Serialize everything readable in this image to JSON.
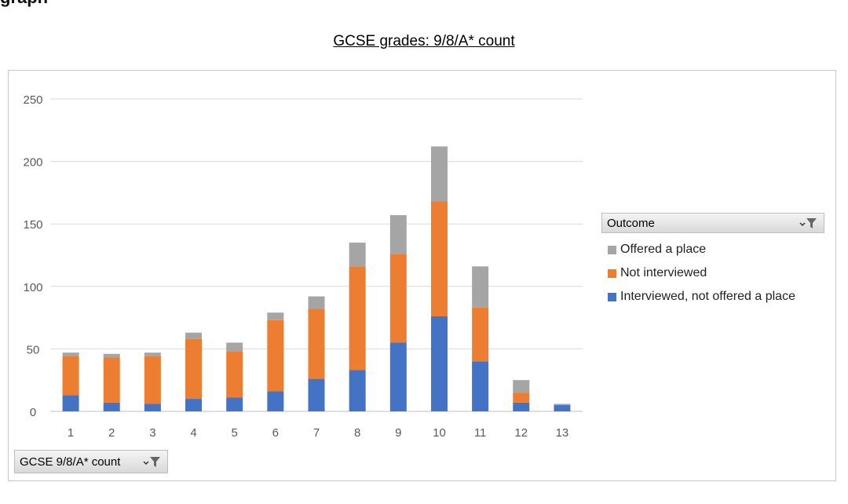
{
  "page": {
    "heading_fragment": "graph",
    "chart_title": "GCSE grades: 9/8/A* count"
  },
  "legend": {
    "header": "Outcome",
    "items": [
      {
        "label": "Offered a place",
        "color": "#a5a5a5"
      },
      {
        "label": "Not interviewed",
        "color": "#ed7d31"
      },
      {
        "label": "Interviewed, not offered a place",
        "color": "#4472c4"
      }
    ]
  },
  "axis_field": {
    "label": "GCSE 9/8/A* count"
  },
  "icons": {
    "filter": "filter-icon",
    "dropdown": "dropdown-arrow-icon"
  },
  "chart_data": {
    "type": "bar",
    "stacked": true,
    "title": "GCSE grades: 9/8/A* count",
    "categories": [
      "1",
      "2",
      "3",
      "4",
      "5",
      "6",
      "7",
      "8",
      "9",
      "10",
      "11",
      "12",
      "13"
    ],
    "series": [
      {
        "name": "Interviewed, not offered a place",
        "color": "#4472c4",
        "values": [
          13,
          7,
          6,
          10,
          11,
          16,
          26,
          33,
          55,
          76,
          40,
          7,
          5
        ]
      },
      {
        "name": "Not interviewed",
        "color": "#ed7d31",
        "values": [
          31,
          36,
          38,
          48,
          37,
          57,
          56,
          83,
          71,
          92,
          43,
          8,
          0
        ]
      },
      {
        "name": "Offered a place",
        "color": "#a5a5a5",
        "values": [
          3,
          3,
          3,
          5,
          7,
          6,
          10,
          19,
          31,
          44,
          33,
          10,
          1
        ]
      }
    ],
    "yticks": [
      0,
      50,
      100,
      150,
      200,
      250
    ],
    "ylim": [
      0,
      250
    ],
    "xlabel": "GCSE 9/8/A* count",
    "ylabel": "",
    "grid": true,
    "legend_position": "right"
  }
}
